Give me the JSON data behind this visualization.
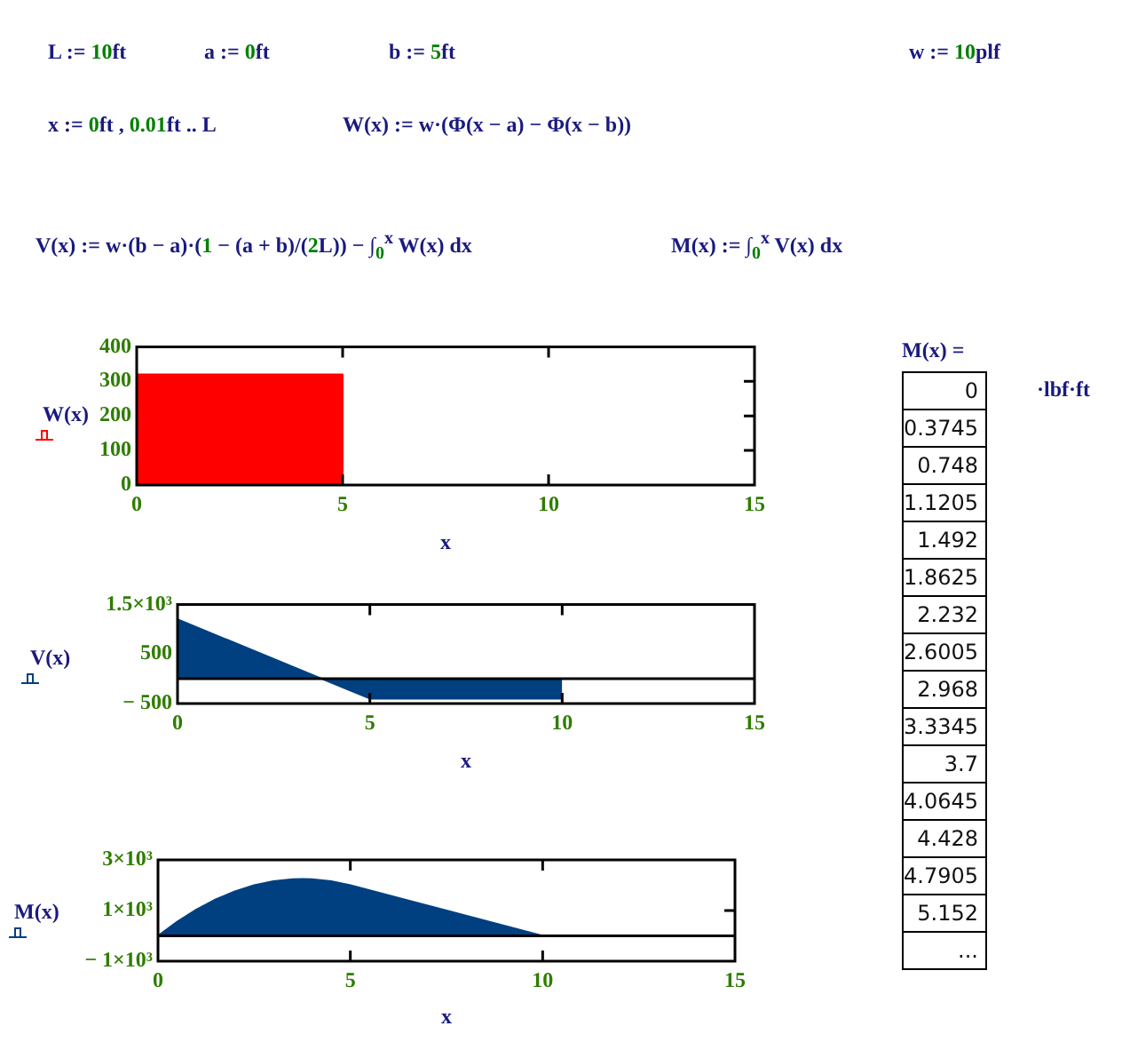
{
  "chart_data": [
    {
      "type": "other",
      "annotations": [
        "L := 10ft",
        "a := 0ft",
        "b := 5ft",
        "w := 10plf",
        "x := 0ft , 0.01ft .. L",
        "W(x) := w·(Φ(x − a) − Φ(x − b))",
        "V(x) := w·(b − a)·(1 − (a + b)/(2L)) − ∫$_{0}$$^{x}$ W(x) dx",
        "M(x) := ∫$_{0}$$^{x}$ V(x) dx"
      ]
    },
    {
      "type": "area",
      "xlabel": "x",
      "ylabel": "W(x)",
      "series": [
        {
          "color": "#ff0000",
          "x": [
            0,
            5,
            5,
            10
          ],
          "values": [
            320,
            320,
            0,
            0
          ]
        }
      ],
      "xlim": [
        0,
        15
      ],
      "xticks": [
        0,
        5,
        10,
        15
      ],
      "ylim": [
        0,
        400
      ],
      "yticks": [
        0,
        100,
        200,
        300,
        400
      ]
    },
    {
      "type": "area",
      "xlabel": "x",
      "ylabel": "V(x)",
      "series": [
        {
          "color": "#004080",
          "x": [
            0,
            5,
            10
          ],
          "values": [
            1200,
            -400,
            -400
          ]
        }
      ],
      "xlim": [
        0,
        15
      ],
      "xticks": [
        0,
        5,
        10,
        15
      ],
      "ylim": [
        -500,
        1500
      ],
      "yticks": [
        {
          "value": -500,
          "label": "− 500"
        },
        500,
        {
          "value": 1500,
          "label": "1.5×10³"
        }
      ],
      "ref_lines": [
        {
          "axis": "y",
          "value": 0,
          "color": "#000000"
        }
      ]
    },
    {
      "type": "area",
      "xlabel": "x",
      "ylabel": "M(x)",
      "series": [
        {
          "color": "#004080",
          "x": [
            0,
            0.5,
            1,
            1.5,
            2,
            2.5,
            3,
            3.5,
            3.75,
            4,
            4.5,
            5,
            10
          ],
          "values": [
            0,
            560,
            1040,
            1440,
            1760,
            2000,
            2160,
            2240,
            2250,
            2240,
            2160,
            2000,
            0
          ]
        }
      ],
      "xlim": [
        0,
        15
      ],
      "xticks": [
        0,
        5,
        10,
        15
      ],
      "ylim": [
        -1000,
        3000
      ],
      "yticks": [
        {
          "value": -1000,
          "label": "− 1×10³"
        },
        {
          "value": 1000,
          "label": "1×10³"
        },
        {
          "value": 3000,
          "label": "3×10³"
        }
      ],
      "ref_lines": [
        {
          "axis": "y",
          "value": 0,
          "color": "#000000"
        }
      ]
    },
    {
      "type": "other",
      "title": "M(x) =",
      "categories": [
        "0",
        "0.3745",
        "0.748",
        "1.1205",
        "1.492",
        "1.8625",
        "2.232",
        "2.6005",
        "2.968",
        "3.3345",
        "3.7",
        "4.0645",
        "4.428",
        "4.7905",
        "5.152",
        "..."
      ],
      "annotations": [
        "·lbf·ft"
      ]
    }
  ]
}
